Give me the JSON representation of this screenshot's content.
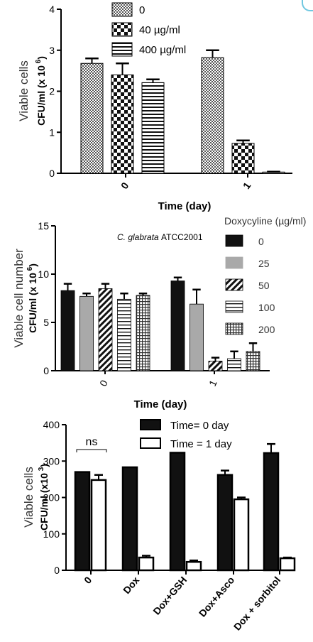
{
  "chart_data": [
    {
      "type": "bar",
      "ylabel_line1": "Viable cells",
      "ylabel_line2": "CFU/ml (x 10",
      "ylabel_exp": "6",
      "ylabel_close": ")",
      "xlabel": "Time (day)",
      "categories": [
        "0",
        "1"
      ],
      "yticks": [
        "0",
        "1",
        "2",
        "3",
        "4"
      ],
      "ylim": [
        0,
        4
      ],
      "series": [
        {
          "name": "0",
          "values": [
            2.68,
            2.82
          ],
          "errors": [
            0.12,
            0.18
          ],
          "pattern": "checker-dense"
        },
        {
          "name": "40 µg/ml",
          "values": [
            2.4,
            0.73
          ],
          "errors": [
            0.28,
            0.07
          ],
          "pattern": "checker-coarse"
        },
        {
          "name": "400 µg/ml",
          "values": [
            2.21,
            0.03
          ],
          "errors": [
            0.08,
            0.01
          ],
          "pattern": "hstripes"
        }
      ]
    },
    {
      "type": "bar",
      "ylabel_line1": "Viable cell number",
      "ylabel_line2": "CFU/ml (x 10",
      "ylabel_exp": "6",
      "ylabel_close": ")",
      "xlabel": "Time (day)",
      "annotation": "C. glabrata ATCC2001",
      "legend_title": "Doxycyline (µg/ml)",
      "categories": [
        "0",
        "1"
      ],
      "yticks": [
        "0",
        "5",
        "10",
        "15"
      ],
      "ylim": [
        0,
        15
      ],
      "series": [
        {
          "name": "0",
          "values": [
            8.3,
            9.3
          ],
          "errors": [
            0.7,
            0.35
          ],
          "pattern": "black"
        },
        {
          "name": "25",
          "values": [
            7.7,
            6.9
          ],
          "errors": [
            0.3,
            1.5
          ],
          "pattern": "gray"
        },
        {
          "name": "50",
          "values": [
            8.5,
            1.0
          ],
          "errors": [
            0.5,
            0.35
          ],
          "pattern": "diag"
        },
        {
          "name": "100",
          "values": [
            7.4,
            1.25
          ],
          "errors": [
            0.6,
            0.75
          ],
          "pattern": "hstripes"
        },
        {
          "name": "200",
          "values": [
            7.8,
            2.0
          ],
          "errors": [
            0.2,
            0.85
          ],
          "pattern": "grid"
        }
      ]
    },
    {
      "type": "bar",
      "ylabel_line1": "Viable cells",
      "ylabel_line2": "CFU/ml (x10",
      "ylabel_exp": "3",
      "ylabel_close": ")",
      "categories": [
        "0",
        "Dox",
        "Dox+GSH",
        "Dox+Asco",
        "Dox + sorbitol"
      ],
      "yticks": [
        "0",
        "100",
        "200",
        "300",
        "400"
      ],
      "ylim": [
        0,
        400
      ],
      "annotation": "ns",
      "series": [
        {
          "name": "Time= 0 day",
          "values": [
            270,
            283,
            323,
            262,
            322
          ],
          "errors": [
            0,
            0,
            0,
            12,
            25
          ],
          "pattern": "black"
        },
        {
          "name": "Time = 1 day",
          "values": [
            248,
            35,
            23,
            195,
            33
          ],
          "errors": [
            14,
            5,
            4,
            5,
            2
          ],
          "pattern": "white"
        }
      ]
    }
  ]
}
